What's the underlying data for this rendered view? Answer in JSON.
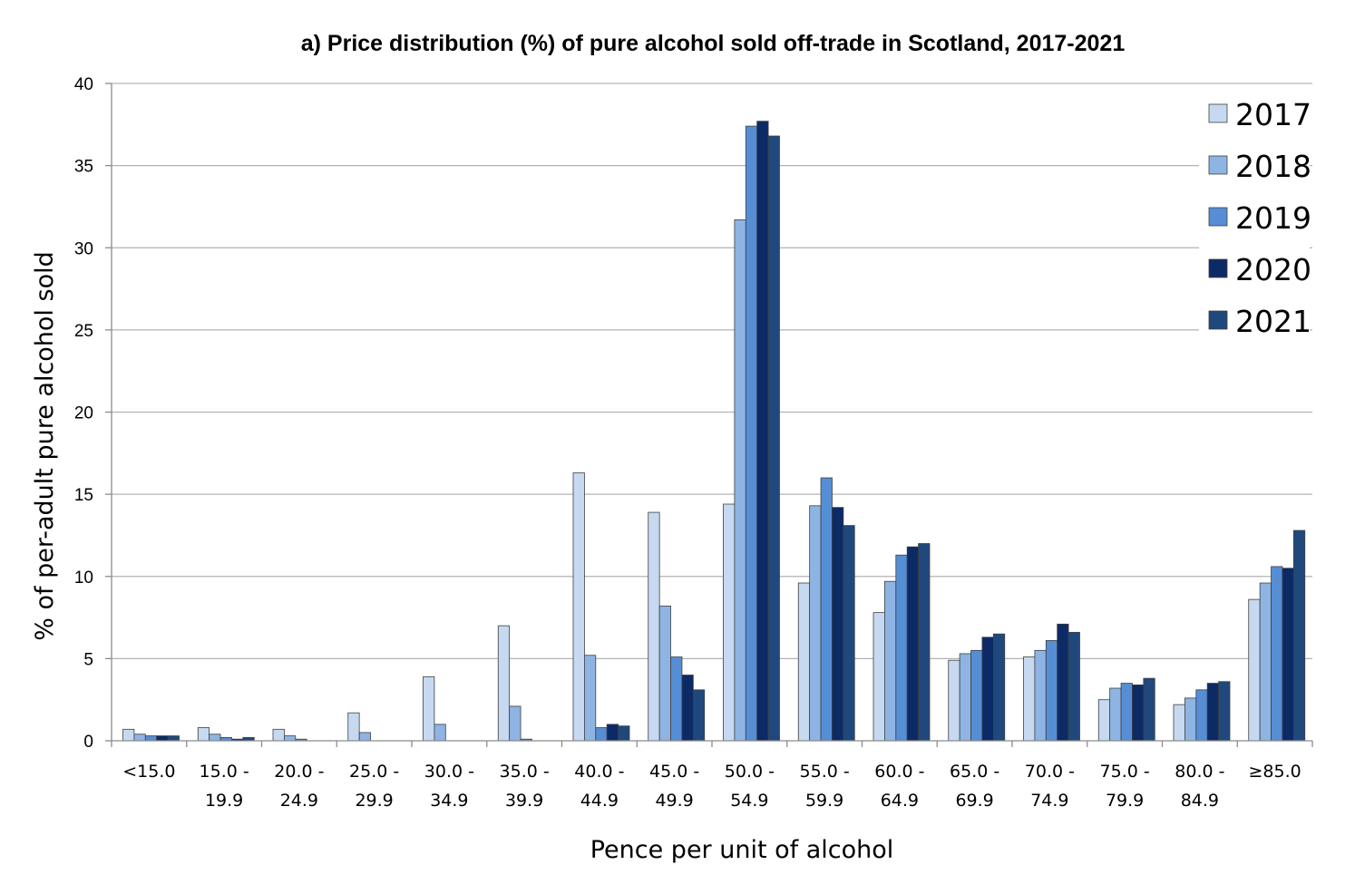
{
  "chart_data": {
    "type": "bar",
    "title": "a) Price distribution (%) of pure alcohol sold off-trade in Scotland, 2017-2021",
    "xlabel": "Pence per unit of alcohol",
    "ylabel": "% of per-adult pure alcohol sold",
    "ylim": [
      0,
      40
    ],
    "yticks": [
      0,
      5,
      10,
      15,
      20,
      25,
      30,
      35,
      40
    ],
    "grid": true,
    "legend_position": "top-right",
    "categories": [
      [
        "<15.0"
      ],
      [
        "15.0 -",
        "19.9"
      ],
      [
        "20.0 -",
        "24.9"
      ],
      [
        "25.0 -",
        "29.9"
      ],
      [
        "30.0 -",
        "34.9"
      ],
      [
        "35.0 -",
        "39.9"
      ],
      [
        "40.0 -",
        "44.9"
      ],
      [
        "45.0 -",
        "49.9"
      ],
      [
        "50.0 -",
        "54.9"
      ],
      [
        "55.0 -",
        "59.9"
      ],
      [
        "60.0 -",
        "64.9"
      ],
      [
        "65.0 -",
        "69.9"
      ],
      [
        "70.0 -",
        "74.9"
      ],
      [
        "75.0 -",
        "79.9"
      ],
      [
        "80.0 -",
        "84.9"
      ],
      [
        "≥85.0"
      ]
    ],
    "series": [
      {
        "name": "2017",
        "color": "#c6d9f1",
        "values": [
          0.7,
          0.8,
          0.7,
          1.7,
          3.9,
          7.0,
          16.3,
          13.9,
          14.4,
          9.6,
          7.8,
          4.9,
          5.1,
          2.5,
          2.2,
          8.6
        ]
      },
      {
        "name": "2018",
        "color": "#8eb4e3",
        "values": [
          0.4,
          0.4,
          0.3,
          0.5,
          1.0,
          2.1,
          5.2,
          8.2,
          31.7,
          14.3,
          9.7,
          5.3,
          5.5,
          3.2,
          2.6,
          9.6
        ]
      },
      {
        "name": "2019",
        "color": "#558ed5",
        "values": [
          0.3,
          0.2,
          0.1,
          0.0,
          0.0,
          0.1,
          0.8,
          5.1,
          37.4,
          16.0,
          11.3,
          5.5,
          6.1,
          3.5,
          3.1,
          10.6
        ]
      },
      {
        "name": "2020",
        "color": "#0c2a66",
        "values": [
          0.3,
          0.1,
          0.0,
          0.0,
          0.0,
          0.0,
          1.0,
          4.0,
          37.7,
          14.2,
          11.8,
          6.3,
          7.1,
          3.4,
          3.5,
          10.5
        ]
      },
      {
        "name": "2021",
        "color": "#1f497d",
        "values": [
          0.3,
          0.2,
          0.0,
          0.0,
          0.0,
          0.0,
          0.9,
          3.1,
          36.8,
          13.1,
          12.0,
          6.5,
          6.6,
          3.8,
          3.6,
          12.8
        ]
      }
    ]
  }
}
